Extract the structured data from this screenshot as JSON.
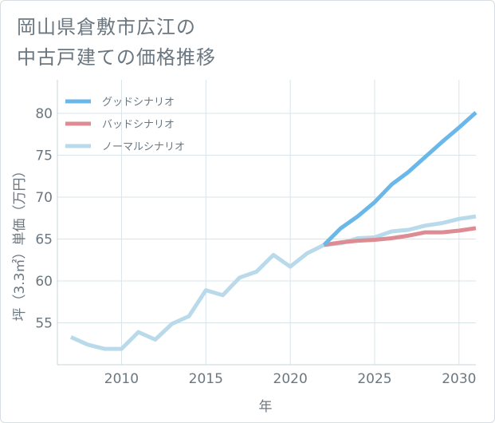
{
  "chart_data": {
    "type": "line",
    "title_lines": [
      "岡山県倉敷市広江の",
      "中古戸建ての価格推移"
    ],
    "xlabel": "年",
    "ylabel": "坪（3.3㎡）単価（万円）",
    "xlim": [
      2006.2,
      2031
    ],
    "ylim": [
      50,
      84
    ],
    "x_ticks": [
      2010,
      2015,
      2020,
      2025,
      2030
    ],
    "y_ticks": [
      55,
      60,
      65,
      70,
      75,
      80
    ],
    "grid": true,
    "legend_position": "top-left",
    "series": [
      {
        "name": "グッドシナリオ",
        "color": "#6ab8ea",
        "x": [
          2022,
          2023,
          2024,
          2025,
          2026,
          2027,
          2028,
          2029,
          2030,
          2031
        ],
        "values": [
          64.3,
          66.3,
          67.7,
          69.4,
          71.5,
          73.0,
          74.8,
          76.6,
          78.3,
          80.1
        ]
      },
      {
        "name": "バッドシナリオ",
        "color": "#dd8c93",
        "x": [
          2022,
          2023,
          2024,
          2025,
          2026,
          2027,
          2028,
          2029,
          2030,
          2031
        ],
        "values": [
          64.3,
          64.6,
          64.8,
          64.9,
          65.1,
          65.4,
          65.8,
          65.8,
          66.0,
          66.3
        ]
      },
      {
        "name": "ノーマルシナリオ",
        "color": "#b9daea",
        "x": [
          2007,
          2008,
          2009,
          2010,
          2011,
          2012,
          2013,
          2014,
          2015,
          2016,
          2017,
          2018,
          2019,
          2020,
          2021,
          2022,
          2023,
          2024,
          2025,
          2026,
          2027,
          2028,
          2029,
          2030,
          2031
        ],
        "values": [
          53.3,
          52.4,
          51.9,
          51.9,
          53.9,
          53.0,
          54.9,
          55.8,
          58.9,
          58.3,
          60.4,
          61.1,
          63.1,
          61.7,
          63.3,
          64.3,
          64.5,
          65.1,
          65.2,
          65.9,
          66.1,
          66.6,
          66.9,
          67.4,
          67.7
        ]
      }
    ]
  }
}
